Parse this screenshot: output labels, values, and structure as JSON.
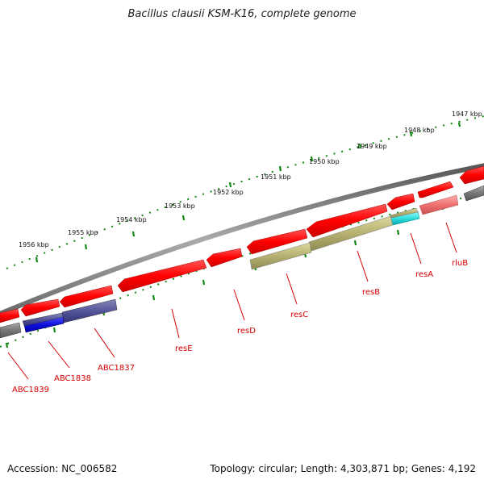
{
  "title": "Bacillus clausii KSM-K16, complete genome",
  "accession_text": "Accession: NC_006582",
  "summary_text": "Topology: circular; Length: 4,303,871 bp; Genes: 4,192",
  "colors": {
    "gene_forward": "#ff0000",
    "gene_reverse": "#ff0000",
    "backbone": "#777777",
    "tick": "#118811",
    "label": "#d40000"
  },
  "kbp_labels": [
    "1947 kbp",
    "1948 kbp",
    "1949 kbp",
    "1950 kbp",
    "1951 kbp",
    "1952 kbp",
    "1953 kbp",
    "1954 kbp",
    "1955 kbp",
    "1956 kbp"
  ],
  "genes": [
    {
      "name": "rluB",
      "color": "#e86a6a"
    },
    {
      "name": "resA",
      "color": "#33dddd"
    },
    {
      "name": "resB",
      "color": "#b5b070"
    },
    {
      "name": "resC",
      "color": "#b5b070"
    },
    {
      "name": "resD",
      "color": "#ff0000"
    },
    {
      "name": "resE",
      "color": "#ff0000"
    },
    {
      "name": "ABC1837",
      "color": "#555599"
    },
    {
      "name": "ABC1838",
      "color": "#1111dd"
    },
    {
      "name": "ABC1839",
      "color": "#777777"
    }
  ]
}
